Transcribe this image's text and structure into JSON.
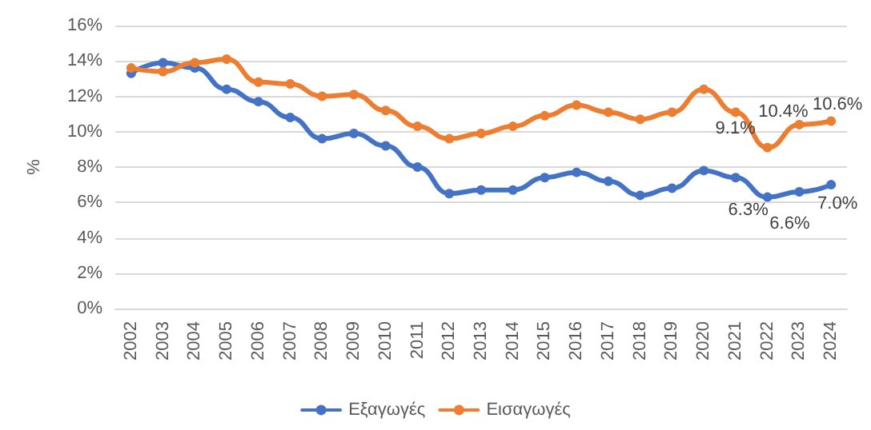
{
  "chart_data": {
    "type": "line",
    "ylabel": "%",
    "categories": [
      "2002",
      "2003",
      "2004",
      "2005",
      "2006",
      "2007",
      "2008",
      "2009",
      "2010",
      "2011",
      "2012",
      "2013",
      "2014",
      "2015",
      "2016",
      "2017",
      "2018",
      "2019",
      "2020",
      "2021",
      "2022",
      "2023",
      "2024"
    ],
    "series": [
      {
        "name": "Εξαγωγές",
        "color": "#4472c4",
        "values": [
          13.3,
          13.9,
          13.6,
          12.4,
          11.7,
          10.8,
          9.6,
          9.9,
          9.2,
          8.0,
          6.5,
          6.7,
          6.7,
          7.4,
          7.7,
          7.2,
          6.4,
          6.8,
          7.8,
          7.4,
          6.3,
          6.6,
          7.0
        ],
        "value_labels": [
          null,
          null,
          null,
          null,
          null,
          null,
          null,
          null,
          null,
          null,
          null,
          null,
          null,
          null,
          null,
          null,
          null,
          null,
          null,
          null,
          "6.3%",
          "6.6%",
          "7.0%"
        ]
      },
      {
        "name": "Εισαγωγές",
        "color": "#ed7d31",
        "values": [
          13.6,
          13.4,
          13.9,
          14.1,
          12.8,
          12.7,
          12.0,
          12.1,
          11.2,
          10.3,
          9.6,
          9.9,
          10.3,
          10.9,
          11.5,
          11.1,
          10.7,
          11.1,
          12.4,
          11.1,
          9.1,
          10.4,
          10.6
        ],
        "value_labels": [
          null,
          null,
          null,
          null,
          null,
          null,
          null,
          null,
          null,
          null,
          null,
          null,
          null,
          null,
          null,
          null,
          null,
          null,
          null,
          null,
          "9.1%",
          "10.4%",
          "10.6%"
        ]
      }
    ],
    "ylim": [
      0,
      16
    ],
    "yticks": [
      {
        "value": 0,
        "label": "0%"
      },
      {
        "value": 2,
        "label": "2%"
      },
      {
        "value": 4,
        "label": "4%"
      },
      {
        "value": 6,
        "label": "6%"
      },
      {
        "value": 8,
        "label": "8%"
      },
      {
        "value": 10,
        "label": "10%"
      },
      {
        "value": 12,
        "label": "12%"
      },
      {
        "value": 14,
        "label": "14%"
      },
      {
        "value": 16,
        "label": "16%"
      }
    ],
    "grid": "y",
    "legend": "bottom",
    "marker": "circle",
    "line_style": "solid"
  }
}
